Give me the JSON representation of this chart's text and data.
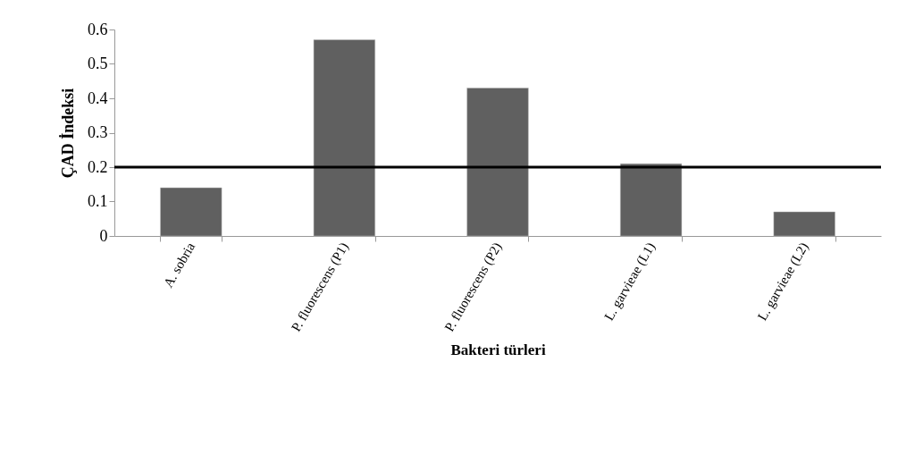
{
  "chart_data": {
    "type": "bar",
    "xlabel": "Bakteri türleri",
    "ylabel": "ÇAD İndeksi",
    "categories": [
      "A. sobria",
      "P. fluorescens (P1)",
      "P. fluorescens (P2)",
      "L. garvieae (L1)",
      "L. garvieae (L2)"
    ],
    "values": [
      0.14,
      0.57,
      0.43,
      0.21,
      0.07
    ],
    "color": "#606060",
    "ylim": [
      0,
      0.6
    ],
    "yticks": [
      0,
      0.1,
      0.2,
      0.3,
      0.4,
      0.5,
      0.6
    ],
    "grid": false,
    "ref_lines": [
      {
        "axis": "y",
        "value": 0.2,
        "color": "#000000"
      }
    ]
  }
}
